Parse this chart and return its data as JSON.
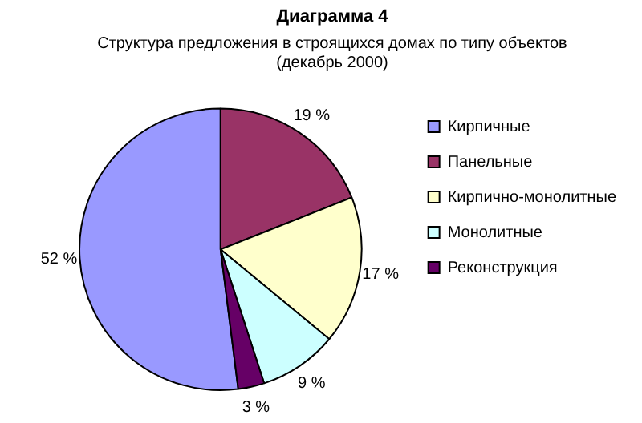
{
  "chart_data": {
    "type": "pie",
    "title": "Диаграмма 4",
    "subtitle": "Структура предложения в строящихся домах по типу объектов (декабрь 2000)",
    "categories": [
      "Кирпичные",
      "Панельные",
      "Кирпично-монолитные",
      "Монолитные",
      "Реконструкция"
    ],
    "values": [
      52,
      19,
      17,
      9,
      3
    ],
    "colors": [
      "#9999ff",
      "#993366",
      "#ffffcc",
      "#ccffff",
      "#660066"
    ],
    "value_labels": [
      "52 %",
      "19 %",
      "17 %",
      "9 %",
      "3 %"
    ],
    "legend": "right"
  }
}
